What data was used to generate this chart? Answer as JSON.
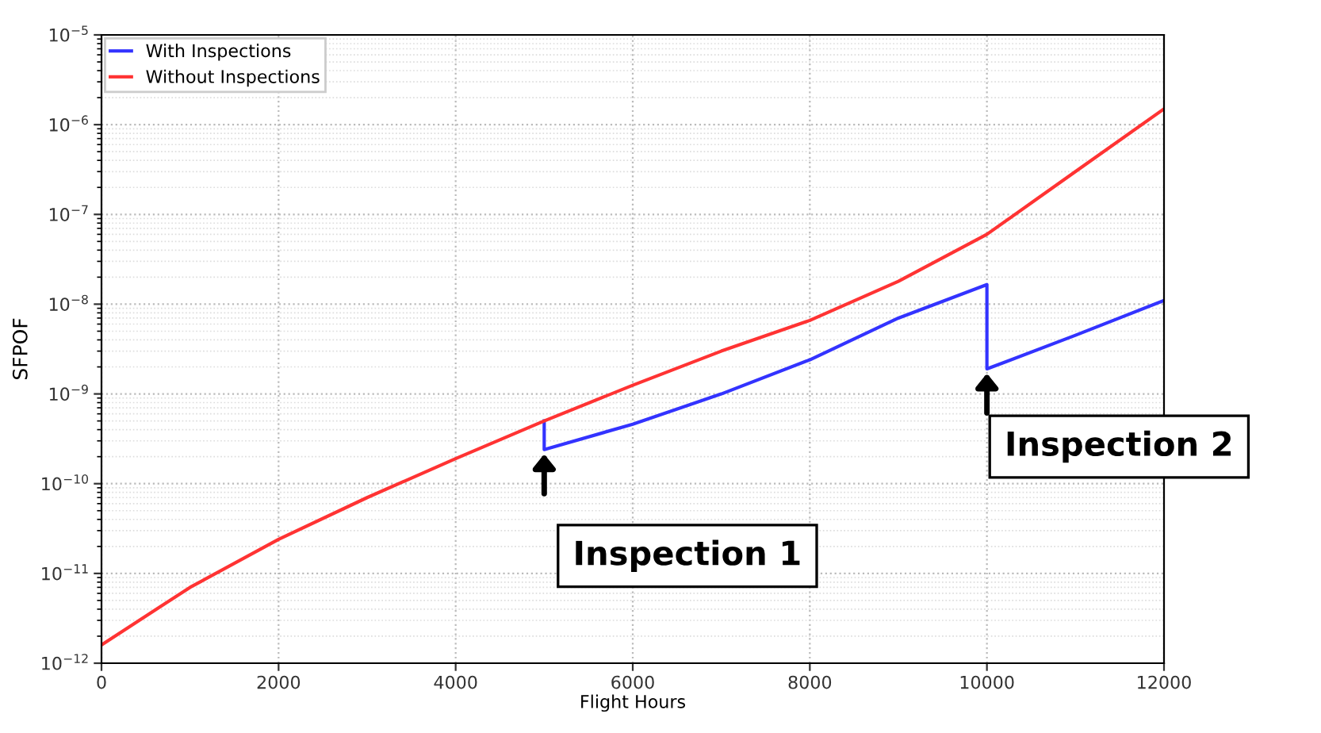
{
  "chart_data": {
    "type": "line",
    "xlabel": "Flight Hours",
    "ylabel": "SFPOF",
    "log": "y",
    "grid": true,
    "legend": "top left",
    "xlim": [
      0,
      12000
    ],
    "xticks": [
      0,
      2000,
      4000,
      6000,
      8000,
      10000,
      12000
    ],
    "ylim": [
      1e-12,
      1e-05
    ],
    "yticks": [
      {
        "value": 1e-12,
        "label": "10$^{−12}$"
      },
      {
        "value": 1e-11,
        "label": "10$^{−11}$"
      },
      {
        "value": 1e-10,
        "label": "10$^{−10}$"
      },
      {
        "value": 1e-09,
        "label": "10$^{−9}$"
      },
      {
        "value": 1e-08,
        "label": "10$^{−8}$"
      },
      {
        "value": 1e-07,
        "label": "10$^{−7}$"
      },
      {
        "value": 1e-06,
        "label": "10$^{−6}$"
      },
      {
        "value": 1e-05,
        "label": "10$^{−5}$"
      }
    ],
    "series": [
      {
        "name": "With Inspections",
        "color": "#3333ff",
        "x": [
          5000,
          5000,
          6000,
          7000,
          8000,
          9000,
          10000,
          10000,
          11000,
          12000
        ],
        "values": [
          5e-10,
          2.4e-10,
          4.6e-10,
          1e-09,
          2.4e-09,
          7e-09,
          1.65e-08,
          1.9e-09,
          4.5e-09,
          1.1e-08
        ]
      },
      {
        "name": "Without Inspections",
        "color": "#ff3333",
        "x": [
          0,
          1000,
          2000,
          3000,
          4000,
          5000,
          6000,
          7000,
          8000,
          9000,
          10000,
          11000,
          12000
        ],
        "values": [
          1.6e-12,
          7e-12,
          2.4e-11,
          7e-11,
          1.9e-10,
          5e-10,
          1.25e-09,
          3e-09,
          6.6e-09,
          1.8e-08,
          6e-08,
          3e-07,
          1.5e-06
        ]
      }
    ],
    "annotations": [
      {
        "text": "Inspection 1",
        "x": 5000,
        "y": 2.4e-10
      },
      {
        "text": "Inspection 2",
        "x": 10000,
        "y": 1.9e-09
      }
    ]
  }
}
